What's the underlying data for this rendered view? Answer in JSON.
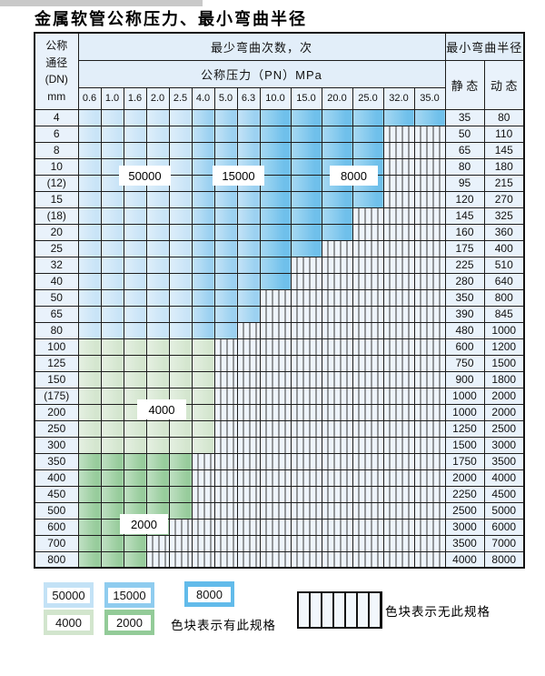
{
  "title": "金属软管公称压力、最小弯曲半径",
  "table": {
    "dn_header_lines": [
      "公称",
      "通径",
      "(DN)",
      "mm"
    ],
    "cycles_header": "最少弯曲次数，次",
    "pressure_header": "公称压力（PN）MPa",
    "radius_header": "最小弯曲半径",
    "static_label": "静 态",
    "dynamic_label": "动 态",
    "pressure_columns": [
      "0.6",
      "1.0",
      "1.6",
      "2.0",
      "2.5",
      "4.0",
      "5.0",
      "6.3",
      "10.0",
      "15.0",
      "20.0",
      "25.0",
      "32.0",
      "35.0"
    ],
    "rows": [
      {
        "dn": "4",
        "colored": 14,
        "zone": "b",
        "static": "35",
        "dynamic": "80"
      },
      {
        "dn": "6",
        "colored": 12,
        "zone": "b",
        "static": "50",
        "dynamic": "110"
      },
      {
        "dn": "8",
        "colored": 12,
        "zone": "b",
        "static": "65",
        "dynamic": "145"
      },
      {
        "dn": "10",
        "colored": 12,
        "zone": "b",
        "static": "80",
        "dynamic": "180"
      },
      {
        "dn": "(12)",
        "colored": 12,
        "zone": "b",
        "static": "95",
        "dynamic": "215"
      },
      {
        "dn": "15",
        "colored": 12,
        "zone": "b",
        "static": "120",
        "dynamic": "270"
      },
      {
        "dn": "(18)",
        "colored": 11,
        "zone": "b",
        "static": "145",
        "dynamic": "325"
      },
      {
        "dn": "20",
        "colored": 11,
        "zone": "b",
        "static": "160",
        "dynamic": "360"
      },
      {
        "dn": "25",
        "colored": 10,
        "zone": "b",
        "static": "175",
        "dynamic": "400"
      },
      {
        "dn": "32",
        "colored": 9,
        "zone": "b",
        "static": "225",
        "dynamic": "510"
      },
      {
        "dn": "40",
        "colored": 9,
        "zone": "b",
        "static": "280",
        "dynamic": "640"
      },
      {
        "dn": "50",
        "colored": 8,
        "zone": "b",
        "static": "350",
        "dynamic": "800"
      },
      {
        "dn": "65",
        "colored": 8,
        "zone": "b",
        "static": "390",
        "dynamic": "845"
      },
      {
        "dn": "80",
        "colored": 7,
        "zone": "b",
        "static": "480",
        "dynamic": "1000"
      },
      {
        "dn": "100",
        "colored": 6,
        "zone": "g1",
        "static": "600",
        "dynamic": "1200"
      },
      {
        "dn": "125",
        "colored": 6,
        "zone": "g1",
        "static": "750",
        "dynamic": "1500"
      },
      {
        "dn": "150",
        "colored": 6,
        "zone": "g1",
        "static": "900",
        "dynamic": "1800"
      },
      {
        "dn": "(175)",
        "colored": 6,
        "zone": "g1",
        "static": "1000",
        "dynamic": "2000"
      },
      {
        "dn": "200",
        "colored": 6,
        "zone": "g1",
        "static": "1000",
        "dynamic": "2000"
      },
      {
        "dn": "250",
        "colored": 6,
        "zone": "g1",
        "static": "1250",
        "dynamic": "2500"
      },
      {
        "dn": "300",
        "colored": 6,
        "zone": "g1",
        "static": "1500",
        "dynamic": "3000"
      },
      {
        "dn": "350",
        "colored": 5,
        "zone": "g2",
        "static": "1750",
        "dynamic": "3500"
      },
      {
        "dn": "400",
        "colored": 5,
        "zone": "g2",
        "static": "2000",
        "dynamic": "4000"
      },
      {
        "dn": "450",
        "colored": 5,
        "zone": "g2",
        "static": "2250",
        "dynamic": "4500"
      },
      {
        "dn": "500",
        "colored": 5,
        "zone": "g2",
        "static": "2500",
        "dynamic": "5000"
      },
      {
        "dn": "600",
        "colored": 4,
        "zone": "g2",
        "static": "3000",
        "dynamic": "6000"
      },
      {
        "dn": "700",
        "colored": 3,
        "zone": "g2",
        "static": "3500",
        "dynamic": "7000"
      },
      {
        "dn": "800",
        "colored": 3,
        "zone": "g2",
        "static": "4000",
        "dynamic": "8000"
      }
    ]
  },
  "zone_labels": [
    {
      "value": "50000"
    },
    {
      "value": "15000"
    },
    {
      "value": "8000"
    },
    {
      "value": "4000"
    },
    {
      "value": "2000"
    }
  ],
  "legend": {
    "swatches": [
      {
        "label": "50000",
        "color": "#c3e2f6"
      },
      {
        "label": "15000",
        "color": "#8fccef"
      },
      {
        "label": "8000",
        "color": "#62bbea"
      },
      {
        "label": "4000",
        "color": "#d2e5cd"
      },
      {
        "label": "2000",
        "color": "#93cb98"
      }
    ],
    "has_spec_text": "色块表示有此规格",
    "no_spec_text": "色块表示无此规格"
  },
  "colors": {
    "cycles_50000": "#c9e4f7",
    "cycles_15000": "#9cd1f1",
    "cycles_8000": "#6fc0eb",
    "cycles_4000": "#d4e6cf",
    "cycles_2000": "#97cc9c",
    "cell_bg": "#e9f2fb",
    "header_bg": "#e2eef9"
  }
}
